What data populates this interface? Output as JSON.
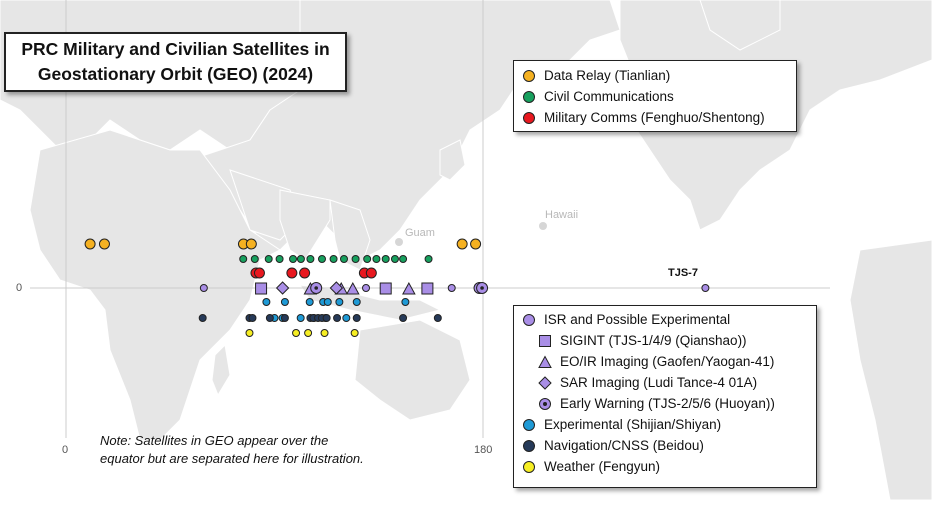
{
  "title_line1": "PRC Military and Civilian Satellites in",
  "title_line2": "Geostationary Orbit (GEO) (2024)",
  "axis": {
    "lat_zero": "0",
    "lon_zero": "0",
    "lon_180": "180"
  },
  "places": {
    "guam": "Guam",
    "hawaii": "Hawaii"
  },
  "callout_tjs7": "TJS-7",
  "note_line1": "Note: Satellites in GEO appear over the",
  "note_line2": "equator but are separated here for illustration.",
  "legend_top": [
    {
      "label": "Data Relay (Tianlian)",
      "color": "#f5b121",
      "icon": "circle"
    },
    {
      "label": "Civil Communications",
      "color": "#17a05e",
      "icon": "circle"
    },
    {
      "label": "Military Comms (Fenghuo/Shentong)",
      "color": "#e8181f",
      "icon": "circle"
    }
  ],
  "legend_bottom": [
    {
      "label": "ISR and Possible Experimental",
      "color": "#a98ee6",
      "icon": "circle"
    },
    {
      "label": "SIGINT (TJS-1/4/9 (Qianshao))",
      "color": "#a98ee6",
      "icon": "square"
    },
    {
      "label": "EO/IR Imaging (Gaofen/Yaogan-41)",
      "color": "#a98ee6",
      "icon": "triangle"
    },
    {
      "label": "SAR Imaging (Ludi Tance-4 01A)",
      "color": "#a98ee6",
      "icon": "diamond"
    },
    {
      "label": "Early Warning (TJS-2/5/6 (Huoyan))",
      "color": "#a98ee6",
      "icon": "target"
    },
    {
      "label": "Experimental (Shijian/Shiyan)",
      "color": "#1e9ad6",
      "icon": "circle"
    },
    {
      "label": "Navigation/CNSS (Beidou)",
      "color": "#263a59",
      "icon": "circle"
    },
    {
      "label": "Weather (Fengyun)",
      "color": "#f6ee23",
      "icon": "circle"
    }
  ],
  "colors": {
    "land": "#e6e6e6",
    "land_border": "#ffffff",
    "grid": "#cccccc",
    "relay": "#f5b121",
    "civil": "#17a05e",
    "military": "#e8181f",
    "isr": "#a98ee6",
    "experimental": "#1e9ad6",
    "navigation": "#263a59",
    "weather": "#f6ee23"
  },
  "satellites": {
    "data_relay_lon": [
      10.4,
      16.6,
      76.6,
      80.0,
      171.0,
      176.8
    ],
    "civil_comm_lon": [
      76.5,
      81.5,
      87.5,
      92.2,
      98.0,
      101.4,
      105.5,
      110.5,
      115.5,
      120.0,
      125.0,
      130.0,
      134.0,
      138.0,
      142.0,
      145.5,
      156.5
    ],
    "military_comm_lon": [
      82.0,
      83.5,
      97.5,
      103.0,
      128.8,
      131.8
    ],
    "isr_circle_lon": [
      59.5,
      129.5,
      166.5,
      276.0
    ],
    "sigint_lon": [
      84.2,
      138.0,
      156.0
    ],
    "eoir_lon": [
      105.5,
      118.8,
      123.8,
      148.0
    ],
    "sar_lon": [
      93.5,
      116.7
    ],
    "early_warning_lon": [
      108.0,
      178.5,
      179.6
    ],
    "experimental_lon": [
      86.5,
      94.5,
      105.2,
      111.0,
      113.0,
      118.0,
      125.5,
      146.5,
      90.0,
      93.5,
      101.3,
      107.0,
      112.0,
      121.0
    ],
    "navigation_lon": [
      59.0,
      79.2,
      80.5,
      88.0,
      94.5,
      105.5,
      106.8,
      108.8,
      110.5,
      112.5,
      117.0,
      125.5,
      145.5,
      160.5
    ],
    "weather_lon": [
      79.2,
      99.3,
      104.5,
      111.6,
      124.6
    ]
  }
}
